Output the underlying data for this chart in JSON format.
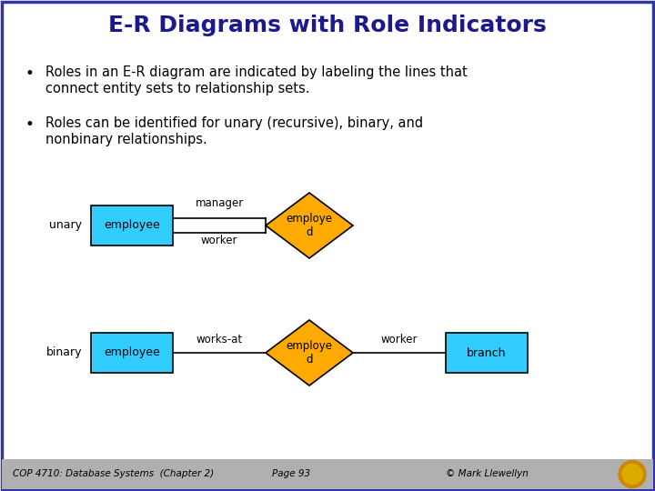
{
  "title": "E-R Diagrams with Role Indicators",
  "title_color": "#1a1a8c",
  "title_fontsize": 18,
  "bullet1_line1": "Roles in an E-R diagram are indicated by labeling the lines that",
  "bullet1_line2": "connect entity sets to relationship sets.",
  "bullet2_line1": "Roles can be identified for unary (recursive), binary, and",
  "bullet2_line2": "nonbinary relationships.",
  "entity_color": "#33ccff",
  "relation_color": "#ffaa00",
  "slide_bg": "#ffffff",
  "border_color": "#3333aa",
  "footer_bg": "#b0b0b0",
  "footer_text_left": "COP 4710: Database Systems  (Chapter 2)",
  "footer_text_mid": "Page 93",
  "footer_text_right": "© Mark Llewellyn",
  "unary_label": "unary",
  "binary_label": "binary",
  "manager_label": "manager",
  "worker_label": "worker",
  "works_at_label": "works-at",
  "worker2_label": "worker",
  "employee_text": "employee",
  "employed_text": "employe\nd",
  "branch_text": "branch",
  "text_fontsize": 10.5,
  "small_fontsize": 8.5,
  "diagram_fontsize": 9
}
